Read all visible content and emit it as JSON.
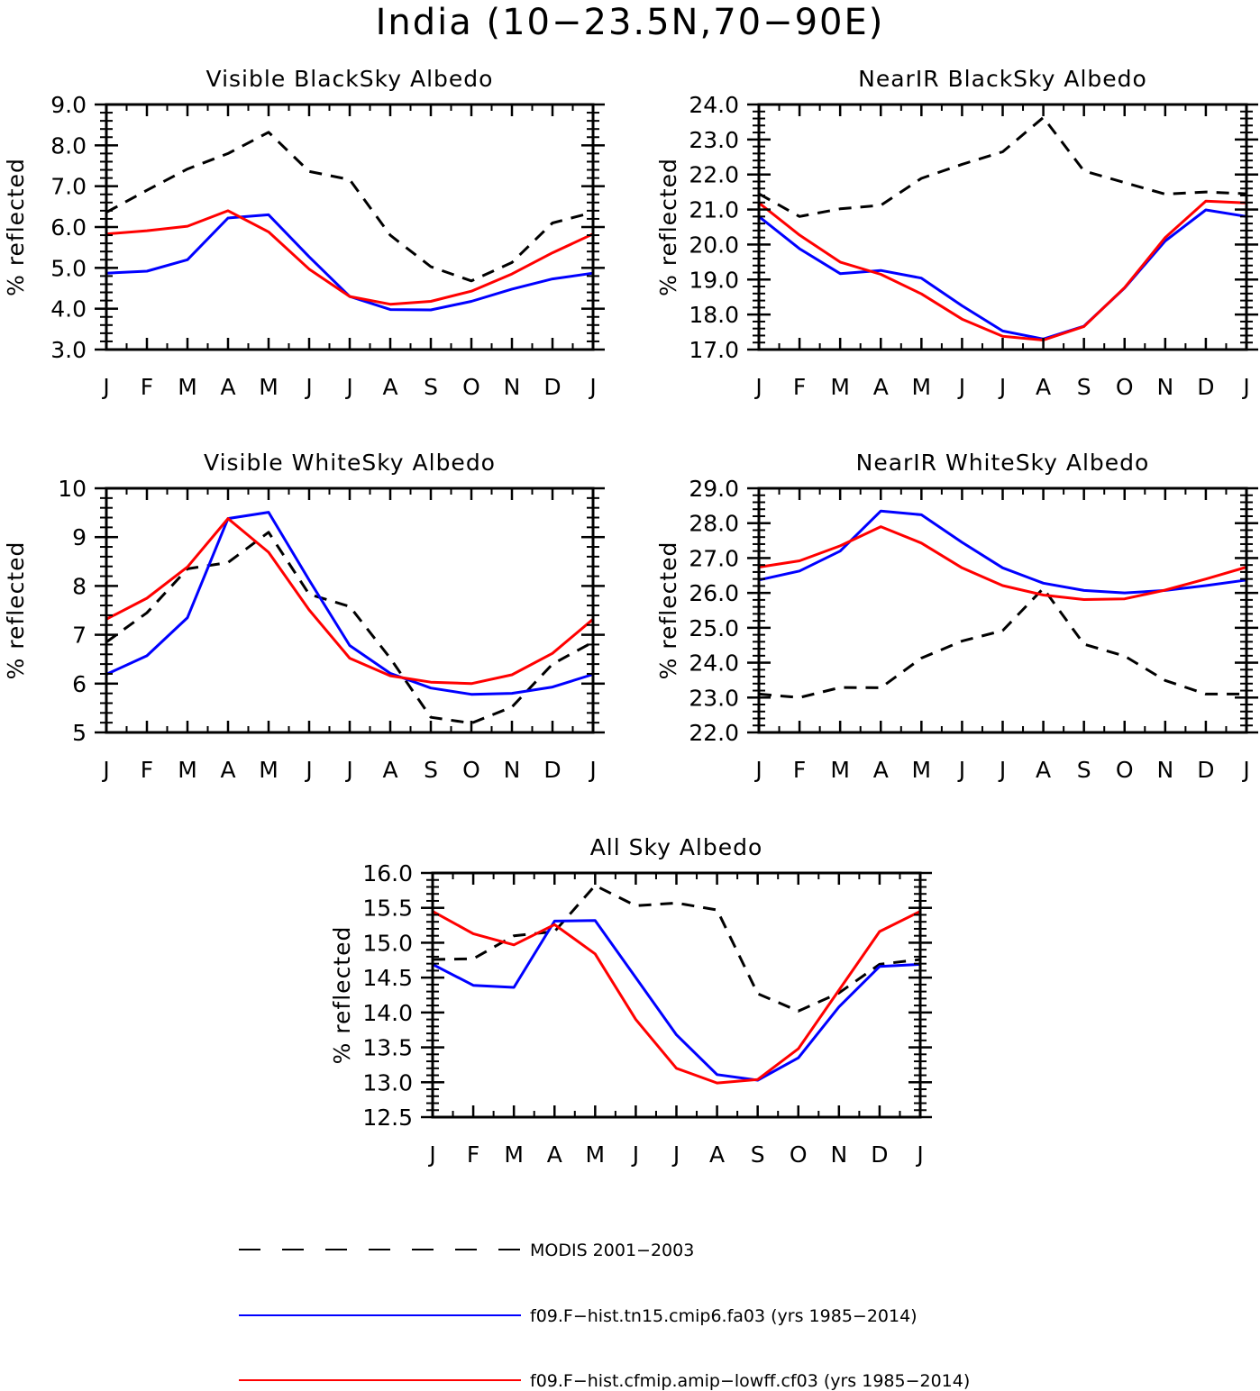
{
  "title": "India (10−23.5N,70−90E)",
  "months": [
    "J",
    "F",
    "M",
    "A",
    "M",
    "J",
    "J",
    "A",
    "S",
    "O",
    "N",
    "D",
    "J"
  ],
  "legend": [
    {
      "label": "MODIS 2001−2003",
      "color": "#000000",
      "dash": true
    },
    {
      "label": "f09.F−hist.tn15.cmip6.fa03 (yrs 1985−2014)",
      "color": "#0000ff",
      "dash": false
    },
    {
      "label": "f09.F−hist.cfmip.amip−lowff.cf03 (yrs 1985−2014)",
      "color": "#ff0000",
      "dash": false
    }
  ],
  "chart_data": [
    {
      "type": "line",
      "title": "Visible BlackSky Albedo",
      "ylabel": "% reflected",
      "xlabel": "",
      "categories": [
        "J",
        "F",
        "M",
        "A",
        "M",
        "J",
        "J",
        "A",
        "S",
        "O",
        "N",
        "D",
        "J"
      ],
      "ylim": [
        3.0,
        9.0
      ],
      "yticks": [
        3.0,
        4.0,
        5.0,
        6.0,
        7.0,
        8.0,
        9.0
      ],
      "ytick_labels": [
        "3.0",
        "4.0",
        "5.0",
        "6.0",
        "7.0",
        "8.0",
        "9.0"
      ],
      "series": [
        {
          "name": "MODIS 2001−2003",
          "values": [
            6.36,
            6.9,
            7.42,
            7.8,
            8.32,
            7.36,
            7.16,
            5.8,
            5.03,
            4.68,
            5.13,
            6.1,
            6.36
          ]
        },
        {
          "name": "f09.F−hist.tn15.cmip6.fa03 (yrs 1985−2014)",
          "values": [
            4.87,
            4.92,
            5.2,
            6.22,
            6.3,
            5.27,
            4.3,
            3.98,
            3.97,
            4.18,
            4.48,
            4.73,
            4.87
          ]
        },
        {
          "name": "f09.F−hist.cfmip.amip−lowff.cf03 (yrs 1985−2014)",
          "values": [
            5.83,
            5.91,
            6.02,
            6.4,
            5.88,
            4.97,
            4.3,
            4.11,
            4.18,
            4.43,
            4.85,
            5.37,
            5.83
          ]
        }
      ]
    },
    {
      "type": "line",
      "title": "NearIR BlackSky Albedo",
      "ylabel": "% reflected",
      "xlabel": "",
      "categories": [
        "J",
        "F",
        "M",
        "A",
        "M",
        "J",
        "J",
        "A",
        "S",
        "O",
        "N",
        "D",
        "J"
      ],
      "ylim": [
        17.0,
        24.0
      ],
      "yticks": [
        17.0,
        18.0,
        19.0,
        20.0,
        21.0,
        22.0,
        23.0,
        24.0
      ],
      "ytick_labels": [
        "17.0",
        "18.0",
        "19.0",
        "20.0",
        "21.0",
        "22.0",
        "23.0",
        "24.0"
      ],
      "series": [
        {
          "name": "MODIS 2001−2003",
          "values": [
            21.45,
            20.8,
            21.02,
            21.12,
            21.89,
            22.29,
            22.65,
            23.63,
            22.1,
            21.77,
            21.44,
            21.5,
            21.45
          ]
        },
        {
          "name": "f09.F−hist.tn15.cmip6.fa03 (yrs 1985−2014)",
          "values": [
            20.8,
            19.88,
            19.17,
            19.26,
            19.04,
            18.25,
            17.53,
            17.3,
            17.67,
            18.76,
            20.1,
            20.99,
            20.8
          ]
        },
        {
          "name": "f09.F−hist.cfmip.amip−lowff.cf03 (yrs 1985−2014)",
          "values": [
            21.19,
            20.27,
            19.5,
            19.15,
            18.59,
            17.87,
            17.38,
            17.27,
            17.66,
            18.77,
            20.2,
            21.24,
            21.19
          ]
        }
      ]
    },
    {
      "type": "line",
      "title": "Visible WhiteSky Albedo",
      "ylabel": "% reflected",
      "xlabel": "",
      "categories": [
        "J",
        "F",
        "M",
        "A",
        "M",
        "J",
        "J",
        "A",
        "S",
        "O",
        "N",
        "D",
        "J"
      ],
      "ylim": [
        5,
        10
      ],
      "yticks": [
        5,
        6,
        7,
        8,
        9,
        10
      ],
      "ytick_labels": [
        "5",
        "6",
        "7",
        "8",
        "9",
        "10"
      ],
      "series": [
        {
          "name": "MODIS 2001−2003",
          "values": [
            6.85,
            7.45,
            8.35,
            8.48,
            9.1,
            7.83,
            7.58,
            6.52,
            5.31,
            5.19,
            5.52,
            6.4,
            6.85
          ]
        },
        {
          "name": "f09.F−hist.tn15.cmip6.fa03 (yrs 1985−2014)",
          "values": [
            6.19,
            6.57,
            7.35,
            9.38,
            9.51,
            8.12,
            6.78,
            6.21,
            5.91,
            5.78,
            5.8,
            5.93,
            6.19
          ]
        },
        {
          "name": "f09.F−hist.cfmip.amip−lowff.cf03 (yrs 1985−2014)",
          "values": [
            7.32,
            7.75,
            8.39,
            9.38,
            8.69,
            7.51,
            6.52,
            6.16,
            6.03,
            6.0,
            6.18,
            6.62,
            7.32
          ]
        }
      ]
    },
    {
      "type": "line",
      "title": "NearIR WhiteSky Albedo",
      "ylabel": "% reflected",
      "xlabel": "",
      "categories": [
        "J",
        "F",
        "M",
        "A",
        "M",
        "J",
        "J",
        "A",
        "S",
        "O",
        "N",
        "D",
        "J"
      ],
      "ylim": [
        22.0,
        29.0
      ],
      "yticks": [
        22.0,
        23.0,
        24.0,
        25.0,
        26.0,
        27.0,
        28.0,
        29.0
      ],
      "ytick_labels": [
        "22.0",
        "23.0",
        "24.0",
        "25.0",
        "26.0",
        "27.0",
        "28.0",
        "29.0"
      ],
      "series": [
        {
          "name": "MODIS 2001−2003",
          "values": [
            23.1,
            23.0,
            23.29,
            23.28,
            24.13,
            24.62,
            24.92,
            26.13,
            24.53,
            24.19,
            23.49,
            23.1,
            23.1
          ]
        },
        {
          "name": "f09.F−hist.tn15.cmip6.fa03 (yrs 1985−2014)",
          "values": [
            26.37,
            26.63,
            27.2,
            28.35,
            28.24,
            27.45,
            26.72,
            26.28,
            26.07,
            26.0,
            26.07,
            26.21,
            26.37
          ]
        },
        {
          "name": "f09.F−hist.cfmip.amip−lowff.cf03 (yrs 1985−2014)",
          "values": [
            26.74,
            26.92,
            27.35,
            27.9,
            27.43,
            26.72,
            26.21,
            25.94,
            25.81,
            25.83,
            26.08,
            26.4,
            26.74
          ]
        }
      ]
    },
    {
      "type": "line",
      "title": "All Sky Albedo",
      "ylabel": "% reflected",
      "xlabel": "",
      "categories": [
        "J",
        "F",
        "M",
        "A",
        "M",
        "J",
        "J",
        "A",
        "S",
        "O",
        "N",
        "D",
        "J"
      ],
      "ylim": [
        12.5,
        16.0
      ],
      "yticks": [
        12.5,
        13.0,
        13.5,
        14.0,
        14.5,
        15.0,
        15.5,
        16.0
      ],
      "ytick_labels": [
        "12.5",
        "13.0",
        "13.5",
        "14.0",
        "14.5",
        "15.0",
        "15.5",
        "16.0"
      ],
      "series": [
        {
          "name": "MODIS 2001−2003",
          "values": [
            14.76,
            14.77,
            15.1,
            15.16,
            15.82,
            15.53,
            15.57,
            15.47,
            14.27,
            14.02,
            14.28,
            14.69,
            14.76
          ]
        },
        {
          "name": "f09.F−hist.tn15.cmip6.fa03 (yrs 1985−2014)",
          "values": [
            14.69,
            14.39,
            14.36,
            15.31,
            15.32,
            14.5,
            13.68,
            13.11,
            13.03,
            13.35,
            14.08,
            14.66,
            14.69
          ]
        },
        {
          "name": "f09.F−hist.cfmip.amip−lowff.cf03 (yrs 1985−2014)",
          "values": [
            15.45,
            15.13,
            14.97,
            15.26,
            14.84,
            13.9,
            13.2,
            12.99,
            13.04,
            13.48,
            14.32,
            15.16,
            15.45
          ]
        }
      ]
    }
  ]
}
